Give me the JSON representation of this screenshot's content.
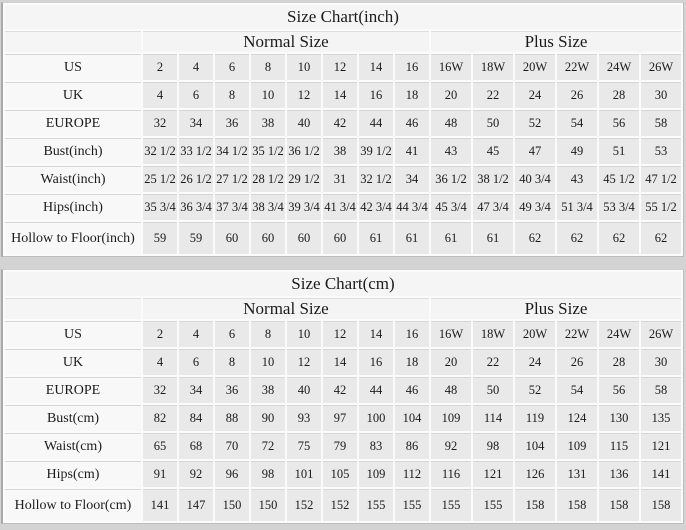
{
  "page": {
    "background": "#d3d3d3",
    "text_color": "#1b1b1b",
    "title_row_bg": "#f5f5f5",
    "label_cell_bg": "#f8f8f8",
    "data_cell_bg": "#e9e9e9",
    "grid_gap_color": "#fbfbfb",
    "hairline_color": "#d6d6d6",
    "outer_edge_color": "#a9a9a9"
  },
  "chart_data": [
    {
      "type": "table",
      "title": "Size Chart(inch)",
      "group_headers": [
        {
          "label": "Normal Size",
          "span": 8
        },
        {
          "label": "Plus Size",
          "span": 6
        }
      ],
      "rows": [
        {
          "label": "US",
          "values": [
            "2",
            "4",
            "6",
            "8",
            "10",
            "12",
            "14",
            "16",
            "16W",
            "18W",
            "20W",
            "22W",
            "24W",
            "26W"
          ]
        },
        {
          "label": "UK",
          "values": [
            "4",
            "6",
            "8",
            "10",
            "12",
            "14",
            "16",
            "18",
            "20",
            "22",
            "24",
            "26",
            "28",
            "30"
          ]
        },
        {
          "label": "EUROPE",
          "values": [
            "32",
            "34",
            "36",
            "38",
            "40",
            "42",
            "44",
            "46",
            "48",
            "50",
            "52",
            "54",
            "56",
            "58"
          ]
        },
        {
          "label": "Bust(inch)",
          "values": [
            "32 1/2",
            "33 1/2",
            "34 1/2",
            "35 1/2",
            "36 1/2",
            "38",
            "39 1/2",
            "41",
            "43",
            "45",
            "47",
            "49",
            "51",
            "53"
          ]
        },
        {
          "label": "Waist(inch)",
          "values": [
            "25 1/2",
            "26 1/2",
            "27 1/2",
            "28 1/2",
            "29 1/2",
            "31",
            "32 1/2",
            "34",
            "36 1/2",
            "38 1/2",
            "40 3/4",
            "43",
            "45 1/2",
            "47 1/2"
          ]
        },
        {
          "label": "Hips(inch)",
          "values": [
            "35 3/4",
            "36 3/4",
            "37 3/4",
            "38 3/4",
            "39 3/4",
            "41 3/4",
            "42 3/4",
            "44 3/4",
            "45 3/4",
            "47 3/4",
            "49 3/4",
            "51 3/4",
            "53 3/4",
            "55 1/2"
          ]
        },
        {
          "label": "Hollow to Floor(inch)",
          "values": [
            "59",
            "59",
            "60",
            "60",
            "60",
            "60",
            "61",
            "61",
            "61",
            "61",
            "62",
            "62",
            "62",
            "62"
          ]
        }
      ]
    },
    {
      "type": "table",
      "title": "Size Chart(cm)",
      "group_headers": [
        {
          "label": "Normal Size",
          "span": 8
        },
        {
          "label": "Plus Size",
          "span": 6
        }
      ],
      "rows": [
        {
          "label": "US",
          "values": [
            "2",
            "4",
            "6",
            "8",
            "10",
            "12",
            "14",
            "16",
            "16W",
            "18W",
            "20W",
            "22W",
            "24W",
            "26W"
          ]
        },
        {
          "label": "UK",
          "values": [
            "4",
            "6",
            "8",
            "10",
            "12",
            "14",
            "16",
            "18",
            "20",
            "22",
            "24",
            "26",
            "28",
            "30"
          ]
        },
        {
          "label": "EUROPE",
          "values": [
            "32",
            "34",
            "36",
            "38",
            "40",
            "42",
            "44",
            "46",
            "48",
            "50",
            "52",
            "54",
            "56",
            "58"
          ]
        },
        {
          "label": "Bust(cm)",
          "values": [
            "82",
            "84",
            "88",
            "90",
            "93",
            "97",
            "100",
            "104",
            "109",
            "114",
            "119",
            "124",
            "130",
            "135"
          ]
        },
        {
          "label": "Waist(cm)",
          "values": [
            "65",
            "68",
            "70",
            "72",
            "75",
            "79",
            "83",
            "86",
            "92",
            "98",
            "104",
            "109",
            "115",
            "121"
          ]
        },
        {
          "label": "Hips(cm)",
          "values": [
            "91",
            "92",
            "96",
            "98",
            "101",
            "105",
            "109",
            "112",
            "116",
            "121",
            "126",
            "131",
            "136",
            "141"
          ]
        },
        {
          "label": "Hollow to Floor(cm)",
          "values": [
            "141",
            "147",
            "150",
            "150",
            "152",
            "152",
            "155",
            "155",
            "155",
            "155",
            "158",
            "158",
            "158",
            "158"
          ]
        }
      ]
    }
  ]
}
